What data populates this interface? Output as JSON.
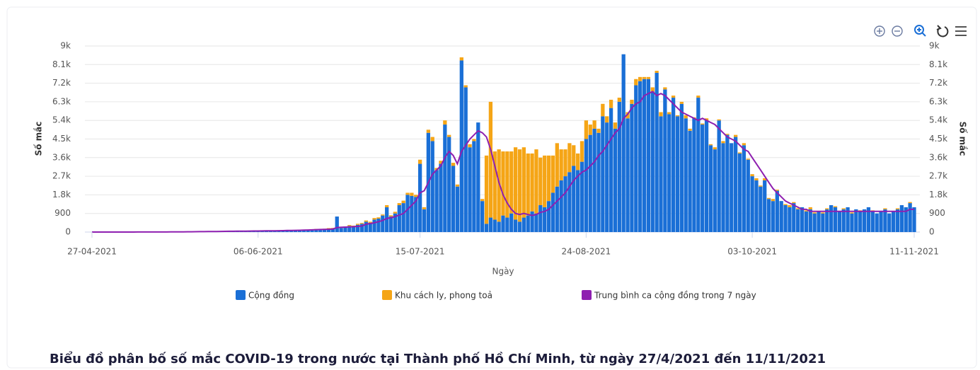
{
  "chart_data": {
    "type": "bar",
    "title": "Biểu đồ phân bố số mắc COVID-19 trong nước tại Thành phố Hồ Chí Minh, từ ngày 27/4/2021 đến 11/11/2021",
    "xlabel": "Ngày",
    "ylabel": "Số mắc",
    "y2label": "Số mắc",
    "stacked": true,
    "grid": true,
    "legend": "bottom",
    "categories": [
      "27-04-2021",
      null,
      null,
      null,
      null,
      null,
      null,
      null,
      null,
      null,
      null,
      null,
      null,
      null,
      null,
      null,
      null,
      null,
      null,
      null,
      null,
      null,
      null,
      null,
      null,
      null,
      null,
      null,
      null,
      null,
      null,
      null,
      null,
      null,
      null,
      null,
      null,
      null,
      null,
      null,
      "06-06-2021",
      null,
      null,
      null,
      null,
      null,
      null,
      null,
      null,
      null,
      null,
      null,
      null,
      null,
      null,
      null,
      null,
      null,
      null,
      null,
      null,
      null,
      null,
      null,
      null,
      null,
      null,
      null,
      null,
      null,
      null,
      null,
      null,
      null,
      null,
      null,
      null,
      null,
      null,
      "15-07-2021",
      null,
      null,
      null,
      null,
      null,
      null,
      null,
      null,
      null,
      null,
      null,
      null,
      null,
      null,
      null,
      null,
      null,
      null,
      null,
      null,
      null,
      null,
      null,
      null,
      null,
      null,
      null,
      null,
      null,
      null,
      null,
      null,
      null,
      null,
      null,
      null,
      null,
      null,
      null,
      "24-08-2021",
      null,
      null,
      null,
      null,
      null,
      null,
      null,
      null,
      null,
      null,
      null,
      null,
      null,
      null,
      null,
      null,
      null,
      null,
      null,
      null,
      null,
      null,
      null,
      null,
      null,
      null,
      null,
      null,
      null,
      null,
      null,
      null,
      null,
      null,
      null,
      null,
      null,
      null,
      null,
      "03-10-2021",
      null,
      null,
      null,
      null,
      null,
      null,
      null,
      null,
      null,
      null,
      null,
      null,
      null,
      null,
      null,
      null,
      null,
      null,
      null,
      null,
      null,
      null,
      null,
      null,
      null,
      null,
      null,
      null,
      null,
      null,
      null,
      null,
      null,
      null,
      null,
      null,
      null,
      null,
      "11-11-2021"
    ],
    "series": [
      {
        "name": "Cộng đồng",
        "type": "bar",
        "color": "#1a6fd6",
        "values": [
          0,
          0,
          0,
          0,
          0,
          0,
          0,
          0,
          0,
          0,
          2,
          3,
          5,
          4,
          3,
          2,
          5,
          6,
          8,
          10,
          12,
          10,
          15,
          20,
          18,
          25,
          22,
          30,
          28,
          35,
          30,
          32,
          40,
          45,
          38,
          42,
          50,
          48,
          55,
          60,
          52,
          58,
          62,
          70,
          65,
          75,
          80,
          85,
          90,
          95,
          100,
          110,
          105,
          120,
          130,
          140,
          150,
          160,
          180,
          750,
          200,
          250,
          300,
          280,
          350,
          400,
          500,
          450,
          600,
          650,
          800,
          1200,
          750,
          900,
          1300,
          1400,
          1800,
          1750,
          1700,
          3300,
          1100,
          4800,
          4400,
          3000,
          3300,
          5200,
          4600,
          3200,
          2200,
          8300,
          7000,
          4100,
          4400,
          5300,
          1500,
          400,
          700,
          600,
          500,
          800,
          700,
          900,
          600,
          500,
          700,
          800,
          1000,
          900,
          1300,
          1200,
          1500,
          1900,
          2200,
          2500,
          2700,
          2900,
          3200,
          3000,
          3400,
          4500,
          4700,
          5000,
          4800,
          5600,
          5300,
          6000,
          5000,
          6300,
          8600,
          5500,
          6200,
          7100,
          7300,
          7400,
          7400,
          6800,
          7700,
          5600,
          6900,
          5700,
          6500,
          5600,
          6200,
          5500,
          4900,
          5500,
          6500,
          5200,
          5400,
          4200,
          4000,
          5400,
          4300,
          4700,
          4300,
          4600,
          3800,
          4200,
          3500,
          2700,
          2500,
          2200,
          2500,
          1600,
          1500,
          2000,
          1500,
          1300,
          1200,
          1400,
          1100,
          1200,
          1000,
          1100,
          900,
          1000,
          900,
          1100,
          1300,
          1200,
          1000,
          1100,
          1200,
          900,
          1100,
          1000,
          1100,
          1200,
          1000,
          900,
          1000,
          1100,
          900,
          1000,
          1100,
          1300,
          1200,
          1400,
          1200
        ]
      },
      {
        "name": "Khu cách ly, phong toả",
        "type": "bar",
        "color": "#f5a516",
        "values": [
          0,
          0,
          0,
          0,
          0,
          0,
          0,
          0,
          0,
          0,
          0,
          0,
          0,
          0,
          0,
          0,
          0,
          0,
          0,
          0,
          0,
          0,
          0,
          0,
          0,
          0,
          0,
          0,
          0,
          0,
          0,
          0,
          0,
          0,
          0,
          0,
          0,
          0,
          0,
          0,
          0,
          0,
          0,
          0,
          0,
          0,
          0,
          0,
          0,
          0,
          0,
          0,
          10,
          0,
          20,
          0,
          10,
          30,
          20,
          0,
          30,
          20,
          40,
          30,
          50,
          40,
          60,
          50,
          80,
          60,
          50,
          100,
          60,
          80,
          100,
          120,
          100,
          150,
          100,
          200,
          100,
          150,
          200,
          100,
          150,
          200,
          100,
          150,
          100,
          150,
          100,
          150,
          100,
          0,
          100,
          3300,
          5600,
          3300,
          3500,
          3100,
          3200,
          3000,
          3500,
          3500,
          3400,
          3000,
          2800,
          3100,
          2300,
          2500,
          2200,
          1800,
          2100,
          1500,
          1300,
          1400,
          1000,
          800,
          1000,
          900,
          500,
          400,
          200,
          600,
          300,
          400,
          300,
          200,
          0,
          300,
          200,
          300,
          200,
          100,
          100,
          200,
          100,
          200,
          100,
          100,
          100,
          50,
          100,
          150,
          100,
          50,
          100,
          50,
          100,
          50,
          100,
          50,
          100,
          50,
          0,
          100,
          50,
          100,
          50,
          100,
          100,
          50,
          100,
          50,
          100,
          50,
          0,
          50,
          100,
          50,
          50,
          0,
          50,
          100,
          50,
          0,
          50,
          50,
          0,
          50,
          0,
          50,
          0,
          50,
          0,
          50,
          0,
          0,
          50,
          0,
          0,
          50,
          0,
          0,
          50,
          0,
          0,
          50,
          0
        ]
      },
      {
        "name": "Trung bình ca cộng đồng trong 7 ngày",
        "type": "line",
        "color": "#8e1fb0",
        "values": [
          0,
          0,
          0,
          0,
          0,
          0,
          0,
          0,
          0,
          0,
          1,
          2,
          2,
          3,
          3,
          3,
          4,
          4,
          5,
          6,
          7,
          8,
          10,
          12,
          14,
          16,
          19,
          21,
          24,
          27,
          29,
          31,
          33,
          36,
          38,
          40,
          42,
          45,
          47,
          50,
          52,
          54,
          57,
          60,
          63,
          66,
          70,
          74,
          78,
          82,
          87,
          93,
          99,
          107,
          115,
          123,
          130,
          138,
          148,
          220,
          230,
          240,
          250,
          260,
          275,
          290,
          380,
          410,
          450,
          500,
          560,
          660,
          690,
          750,
          820,
          900,
          1100,
          1300,
          1500,
          1900,
          2000,
          2400,
          2800,
          3000,
          3200,
          3600,
          3900,
          3700,
          3300,
          3900,
          4200,
          4500,
          4700,
          4900,
          4800,
          4600,
          4000,
          3200,
          2400,
          1800,
          1400,
          1100,
          900,
          850,
          900,
          850,
          800,
          850,
          950,
          1000,
          1100,
          1300,
          1500,
          1700,
          1900,
          2200,
          2500,
          2700,
          2900,
          3000,
          3200,
          3400,
          3700,
          3900,
          4200,
          4500,
          4800,
          5000,
          5500,
          5700,
          6000,
          6200,
          6300,
          6600,
          6700,
          6800,
          6600,
          6700,
          6600,
          6400,
          6200,
          6000,
          5800,
          5700,
          5600,
          5500,
          5400,
          5500,
          5400,
          5300,
          5200,
          5000,
          4800,
          4600,
          4500,
          4400,
          4200,
          4000,
          3900,
          3600,
          3300,
          3000,
          2700,
          2400,
          2100,
          1900,
          1700,
          1500,
          1400,
          1300,
          1200,
          1100,
          1100,
          1000,
          1000,
          1000,
          1000,
          1000,
          1000,
          1000,
          1000,
          1000,
          1000,
          1000,
          1000,
          1000,
          1000,
          1000,
          1000,
          1000,
          1000,
          1000,
          1000,
          1000,
          1000,
          1000,
          1000,
          1100,
          1100
        ]
      }
    ],
    "ylim": [
      0,
      9000
    ],
    "yticks": [
      0,
      900,
      {
        "value": 1800,
        "label": "1.8k"
      },
      {
        "value": 2700,
        "label": "2.7k"
      },
      {
        "value": 3600,
        "label": "3.6k"
      },
      {
        "value": 4500,
        "label": "4.5k"
      },
      {
        "value": 5400,
        "label": "5.4k"
      },
      {
        "value": 6300,
        "label": "6.3k"
      },
      {
        "value": 7200,
        "label": "7.2k"
      },
      {
        "value": 8100,
        "label": "8.1k"
      },
      {
        "value": 9000,
        "label": "9k"
      }
    ],
    "y2lim": [
      0,
      9000
    ],
    "y2ticks": [
      0,
      900,
      {
        "value": 1800,
        "label": "1.8k"
      },
      {
        "value": 2700,
        "label": "2.7k"
      },
      {
        "value": 3600,
        "label": "3.6k"
      },
      {
        "value": 4500,
        "label": "4.5k"
      },
      {
        "value": 5400,
        "label": "5.4k"
      },
      {
        "value": 6300,
        "label": "6.3k"
      },
      {
        "value": 7200,
        "label": "7.2k"
      },
      {
        "value": 8100,
        "label": "8.1k"
      },
      {
        "value": 9000,
        "label": "9k"
      }
    ]
  }
}
